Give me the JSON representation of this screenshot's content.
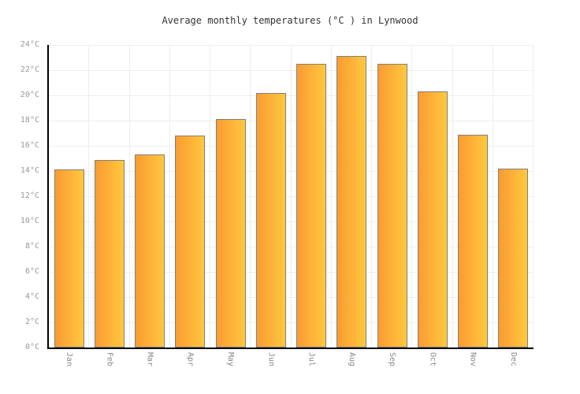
{
  "title": "Average monthly temperatures (°C ) in Lynwood",
  "chart_data": {
    "type": "bar",
    "title": "Average monthly temperatures (°C ) in Lynwood",
    "categories": [
      "Jan",
      "Feb",
      "Mar",
      "Apr",
      "May",
      "Jun",
      "Jul",
      "Aug",
      "Sep",
      "Oct",
      "Nov",
      "Dec"
    ],
    "values": [
      14.1,
      14.9,
      15.3,
      16.8,
      18.1,
      20.2,
      22.5,
      23.1,
      22.5,
      20.3,
      16.9,
      14.2
    ],
    "xlabel": "",
    "ylabel": "",
    "ylim": [
      0,
      24
    ],
    "ytick_step": 2,
    "ytick_suffix": "°C",
    "grid": true,
    "legend_position": "none"
  },
  "colors": {
    "background": "#ffffff",
    "bar_gradient_left": "#fb9b32",
    "bar_gradient_right": "#ffc83e",
    "bar_border": "#808080",
    "axis": "#000000",
    "gridline": "#eeeeee",
    "y_tick_label": "#999999",
    "x_tick_label": "#888888",
    "title_color": "#333333"
  }
}
